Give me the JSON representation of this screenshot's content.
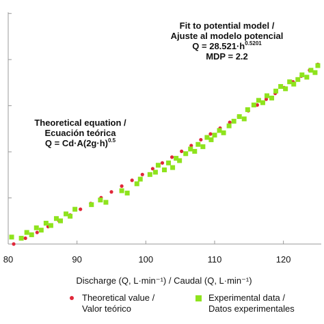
{
  "chart_data": {
    "type": "scatter",
    "xlabel": "Discharge (Q, L·min⁻¹) / Caudal (Q, L·min⁻¹)",
    "ylabel": "",
    "xlim": [
      80,
      125.5
    ],
    "ylim": [
      0,
      1
    ],
    "x_ticks": [
      "80",
      "90",
      "100",
      "110",
      "120"
    ],
    "y_ticks": [
      "",
      "",
      "",
      "",
      "",
      ""
    ],
    "grid": false,
    "legend_position": "bottom",
    "annotations": {
      "fit": {
        "line1": "Fit to potential model /",
        "line2": "Ajuste al modelo potencial",
        "line3_base": "Q = 28.521·h",
        "line3_exp": "0.5201",
        "line4": "MDP = 2.2"
      },
      "theory": {
        "line1": "Theoretical equation /",
        "line2": "Ecuación teórica",
        "line3_base": "Q = Cd·A(2g·h)",
        "line3_exp": "0.5"
      }
    },
    "series": [
      {
        "name": "Theoretical value / Valor teórico",
        "marker": "circle",
        "color": "#e0283a",
        "x": [
          80.8,
          82.5,
          84.2,
          85.8,
          87.4,
          89.0,
          90.5,
          92.0,
          93.5,
          95.0,
          96.5,
          98.0,
          99.5,
          101.0,
          102.4,
          103.8,
          105.2,
          106.6,
          108.0,
          109.4,
          110.8,
          112.2,
          113.5,
          114.9,
          116.2,
          117.5,
          118.8,
          120.1,
          121.4,
          122.6,
          123.8,
          125.0
        ],
        "y": [
          0.0,
          0.025,
          0.05,
          0.075,
          0.1,
          0.125,
          0.15,
          0.175,
          0.2,
          0.225,
          0.25,
          0.275,
          0.3,
          0.325,
          0.35,
          0.375,
          0.4,
          0.425,
          0.45,
          0.475,
          0.5,
          0.525,
          0.55,
          0.575,
          0.6,
          0.625,
          0.65,
          0.675,
          0.7,
          0.725,
          0.75,
          0.775
        ]
      },
      {
        "name": "Experimental data / Datos experimentales",
        "marker": "square",
        "color": "#8ee31d",
        "x": [
          80.5,
          81.9,
          82.7,
          83.4,
          84.1,
          84.8,
          85.5,
          86.2,
          87.0,
          87.6,
          88.4,
          89.0,
          89.7,
          92.1,
          93.4,
          94.2,
          96.5,
          97.3,
          98.7,
          99.2,
          100.6,
          101.4,
          101.8,
          102.7,
          103.3,
          103.9,
          104.4,
          104.9,
          105.8,
          106.5,
          107.1,
          107.6,
          108.3,
          108.9,
          109.5,
          110.0,
          110.7,
          111.3,
          112.1,
          112.8,
          113.6,
          114.3,
          114.8,
          115.7,
          116.4,
          117.0,
          117.6,
          118.3,
          118.9,
          119.6,
          120.3,
          120.9,
          121.5,
          122.1,
          122.7,
          123.4,
          124.0,
          124.6,
          125.0
        ],
        "y": [
          0.03,
          0.025,
          0.05,
          0.04,
          0.07,
          0.06,
          0.09,
          0.08,
          0.11,
          0.1,
          0.13,
          0.12,
          0.15,
          0.17,
          0.19,
          0.18,
          0.23,
          0.22,
          0.26,
          0.28,
          0.3,
          0.31,
          0.34,
          0.32,
          0.35,
          0.33,
          0.37,
          0.36,
          0.39,
          0.41,
          0.4,
          0.43,
          0.42,
          0.46,
          0.45,
          0.47,
          0.49,
          0.48,
          0.51,
          0.53,
          0.55,
          0.54,
          0.58,
          0.6,
          0.62,
          0.61,
          0.64,
          0.63,
          0.66,
          0.68,
          0.67,
          0.7,
          0.69,
          0.71,
          0.73,
          0.72,
          0.75,
          0.74,
          0.77
        ]
      }
    ]
  }
}
